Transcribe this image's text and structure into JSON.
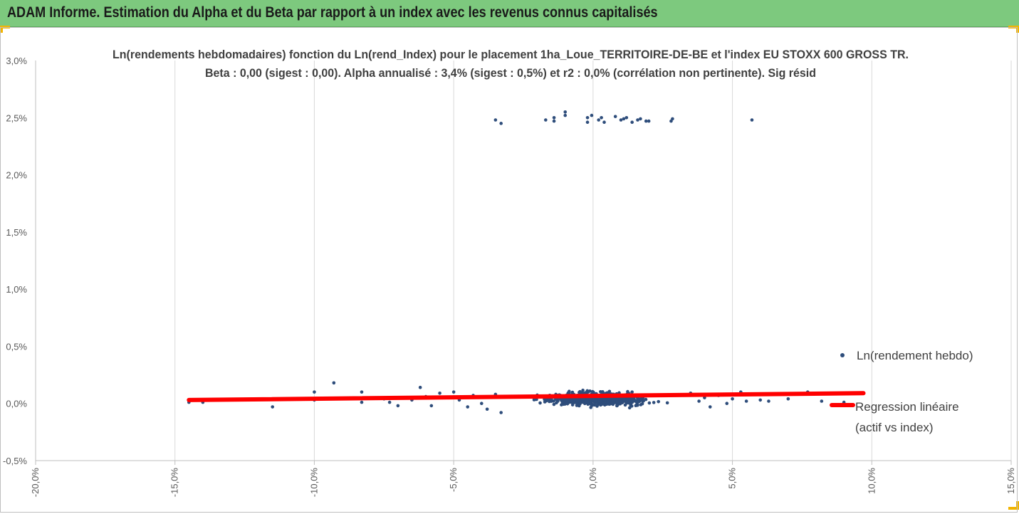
{
  "header": {
    "title": "ADAM Informe. Estimation du Alpha et du Beta par rapport à un index avec les revenus connus capitalisés"
  },
  "colors": {
    "banner": "#7dc97e",
    "points": "#2e4d7b",
    "regression": "#ff0000",
    "grid": "#d9d9d9",
    "corner": "#f2b400"
  },
  "chart_data": {
    "type": "scatter",
    "title": "Ln(rendements hebdomadaires) fonction du Ln(rend_Index) pour le placement 1ha_Loue_TERRITOIRE-DE-BE et l'index EU STOXX 600 GROSS TR.",
    "subtitle": "Beta : 0,00 (sigest : 0,00). Alpha annualisé : 3,4% (sigest : 0,5%) et r2 : 0,0% (corrélation non pertinente). Sig résid",
    "xlabel": "",
    "ylabel": "",
    "xlim": [
      -20,
      15
    ],
    "ylim": [
      -0.5,
      3.0
    ],
    "x_ticks": [
      "-20,0%",
      "-15,0%",
      "-10,0%",
      "-5,0%",
      "0,0%",
      "5,0%",
      "10,0%",
      "15,0%"
    ],
    "y_ticks": [
      "3,0%",
      "2,5%",
      "2,0%",
      "1,5%",
      "1,0%",
      "0,5%",
      "0,0%",
      "-0,5%"
    ],
    "grid": "vertical",
    "legend_position": "right",
    "series": [
      {
        "name": "Ln(rendement hebdo)",
        "type": "scatter",
        "points": [
          [
            -3.5,
            2.48
          ],
          [
            -3.3,
            2.45
          ],
          [
            -1.7,
            2.48
          ],
          [
            -1.4,
            2.47
          ],
          [
            -1.4,
            2.5
          ],
          [
            -1.0,
            2.52
          ],
          [
            -1.0,
            2.55
          ],
          [
            -0.2,
            2.5
          ],
          [
            -0.2,
            2.46
          ],
          [
            -0.05,
            2.52
          ],
          [
            0.2,
            2.48
          ],
          [
            0.3,
            2.5
          ],
          [
            0.4,
            2.46
          ],
          [
            0.8,
            2.51
          ],
          [
            1.0,
            2.48
          ],
          [
            1.1,
            2.49
          ],
          [
            1.2,
            2.5
          ],
          [
            1.4,
            2.46
          ],
          [
            1.6,
            2.48
          ],
          [
            1.7,
            2.49
          ],
          [
            1.9,
            2.47
          ],
          [
            2.0,
            2.47
          ],
          [
            2.8,
            2.47
          ],
          [
            2.85,
            2.49
          ],
          [
            5.7,
            2.48
          ],
          [
            -14.5,
            0.01
          ],
          [
            -14.0,
            0.01
          ],
          [
            -11.5,
            -0.03
          ],
          [
            -10.0,
            0.1
          ],
          [
            -10.0,
            0.03
          ],
          [
            -9.3,
            0.18
          ],
          [
            -8.3,
            0.1
          ],
          [
            -8.3,
            0.01
          ],
          [
            -7.5,
            0.04
          ],
          [
            -7.3,
            0.01
          ],
          [
            -7.0,
            -0.02
          ],
          [
            -6.5,
            0.03
          ],
          [
            -6.2,
            0.14
          ],
          [
            -6.0,
            0.06
          ],
          [
            -5.8,
            -0.02
          ],
          [
            -5.5,
            0.09
          ],
          [
            -5.3,
            0.05
          ],
          [
            -5.0,
            0.1
          ],
          [
            -4.8,
            0.03
          ],
          [
            -4.5,
            -0.03
          ],
          [
            -4.3,
            0.07
          ],
          [
            -4.0,
            0.0
          ],
          [
            -3.8,
            -0.05
          ],
          [
            -3.5,
            0.08
          ],
          [
            -3.3,
            -0.08
          ],
          [
            3.5,
            0.09
          ],
          [
            3.8,
            0.02
          ],
          [
            4.0,
            0.05
          ],
          [
            4.2,
            -0.03
          ],
          [
            4.5,
            0.07
          ],
          [
            4.8,
            0.0
          ],
          [
            5.0,
            0.04
          ],
          [
            5.3,
            0.1
          ],
          [
            5.5,
            0.02
          ],
          [
            6.0,
            0.03
          ],
          [
            6.3,
            0.02
          ],
          [
            7.0,
            0.04
          ],
          [
            7.7,
            0.1
          ],
          [
            8.2,
            0.02
          ],
          [
            9.0,
            0.01
          ]
        ]
      },
      {
        "name": "Regression linéaire (actif vs index)",
        "type": "line",
        "points": [
          [
            -14.5,
            0.03
          ],
          [
            9.7,
            0.09
          ]
        ]
      }
    ],
    "legend": [
      {
        "label": "Ln(rendement hebdo)"
      },
      {
        "label_line1": "Regression linéaire",
        "label_line2": "(actif vs index)"
      }
    ]
  }
}
